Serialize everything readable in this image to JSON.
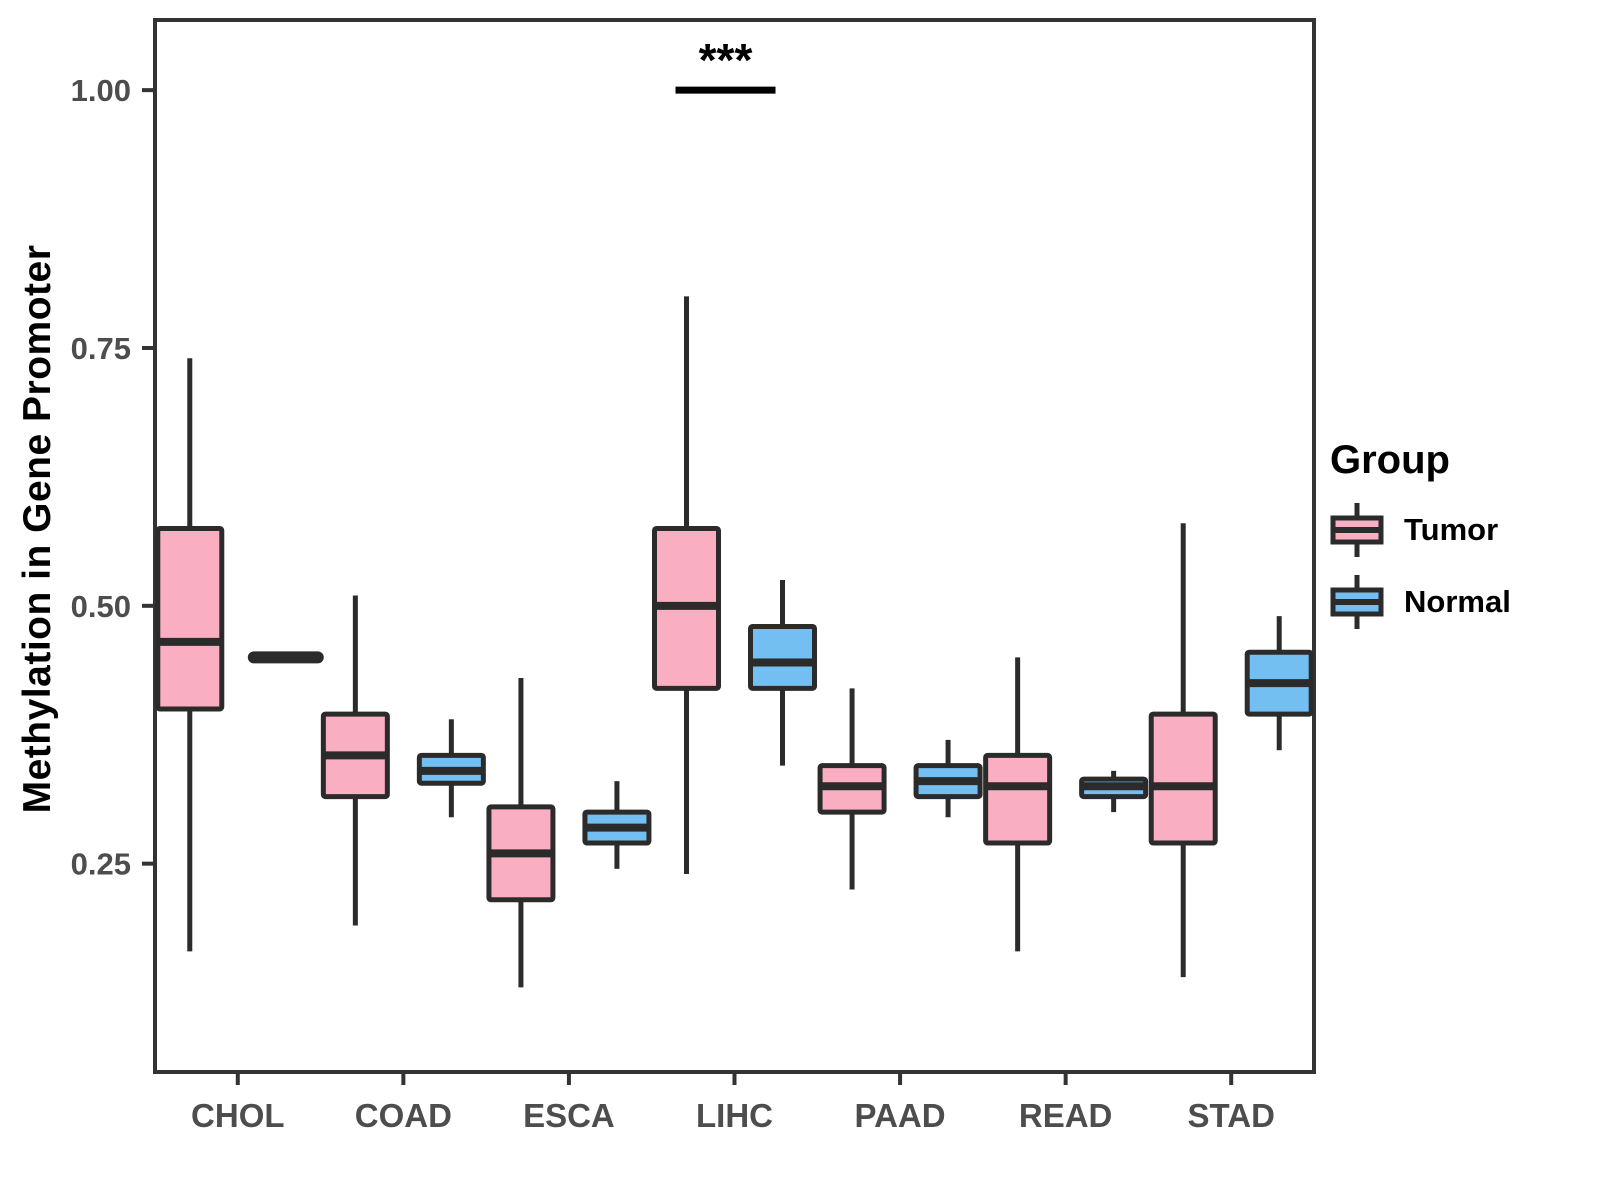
{
  "y_axis": {
    "label": "Methylation in Gene Promoter",
    "tick_labels": [
      "0.25",
      "0.50",
      "0.75",
      "1.00"
    ]
  },
  "x_axis": {
    "categories": [
      "CHOL",
      "COAD",
      "ESCA",
      "LIHC",
      "PAAD",
      "READ",
      "STAD"
    ]
  },
  "legend": {
    "title": "Group",
    "entries": [
      {
        "label": "Tumor",
        "color": "#FAAEC1"
      },
      {
        "label": "Normal",
        "color": "#73BFF2"
      }
    ]
  },
  "significance": {
    "category": "LIHC",
    "label": "***"
  },
  "colors": {
    "tumor_fill": "#FAAEC1",
    "normal_fill": "#73BFF2",
    "box_stroke": "#2B2B2B",
    "panel_border": "#333333",
    "tick_text": "#4D4D4D"
  },
  "chart_data": {
    "type": "boxplot",
    "title": "",
    "xlabel": "",
    "ylabel": "Methylation in Gene Promoter",
    "categories": [
      "CHOL",
      "COAD",
      "ESCA",
      "LIHC",
      "PAAD",
      "READ",
      "STAD"
    ],
    "y_ticks": [
      0.25,
      0.5,
      0.75,
      1.0
    ],
    "ylim": [
      0.048,
      1.068
    ],
    "legend_position": "right",
    "grid": false,
    "series": [
      {
        "name": "Tumor",
        "fill": "#FAAEC1",
        "stats": [
          {
            "category": "CHOL",
            "min": 0.165,
            "q1": 0.4,
            "median": 0.465,
            "q3": 0.575,
            "max": 0.74
          },
          {
            "category": "COAD",
            "min": 0.19,
            "q1": 0.315,
            "median": 0.355,
            "q3": 0.395,
            "max": 0.51
          },
          {
            "category": "ESCA",
            "min": 0.13,
            "q1": 0.215,
            "median": 0.26,
            "q3": 0.305,
            "max": 0.43
          },
          {
            "category": "LIHC",
            "min": 0.24,
            "q1": 0.42,
            "median": 0.5,
            "q3": 0.575,
            "max": 0.8
          },
          {
            "category": "PAAD",
            "min": 0.225,
            "q1": 0.3,
            "median": 0.325,
            "q3": 0.345,
            "max": 0.42
          },
          {
            "category": "READ",
            "min": 0.165,
            "q1": 0.27,
            "median": 0.325,
            "q3": 0.355,
            "max": 0.45
          },
          {
            "category": "STAD",
            "min": 0.14,
            "q1": 0.27,
            "median": 0.325,
            "q3": 0.395,
            "max": 0.58
          }
        ]
      },
      {
        "name": "Normal",
        "fill": "#73BFF2",
        "stats": [
          {
            "category": "CHOL",
            "min": 0.45,
            "q1": 0.45,
            "median": 0.45,
            "q3": 0.45,
            "max": 0.45
          },
          {
            "category": "COAD",
            "min": 0.295,
            "q1": 0.328,
            "median": 0.34,
            "q3": 0.355,
            "max": 0.39
          },
          {
            "category": "ESCA",
            "min": 0.245,
            "q1": 0.27,
            "median": 0.285,
            "q3": 0.3,
            "max": 0.33
          },
          {
            "category": "LIHC",
            "min": 0.345,
            "q1": 0.42,
            "median": 0.445,
            "q3": 0.48,
            "max": 0.525
          },
          {
            "category": "PAAD",
            "min": 0.295,
            "q1": 0.315,
            "median": 0.33,
            "q3": 0.345,
            "max": 0.37
          },
          {
            "category": "READ",
            "min": 0.3,
            "q1": 0.315,
            "median": 0.325,
            "q3": 0.332,
            "max": 0.34
          },
          {
            "category": "STAD",
            "min": 0.36,
            "q1": 0.395,
            "median": 0.425,
            "q3": 0.455,
            "max": 0.49
          }
        ]
      }
    ],
    "significance": {
      "category": "LIHC",
      "label": "***",
      "bar_value": 1.0
    }
  }
}
